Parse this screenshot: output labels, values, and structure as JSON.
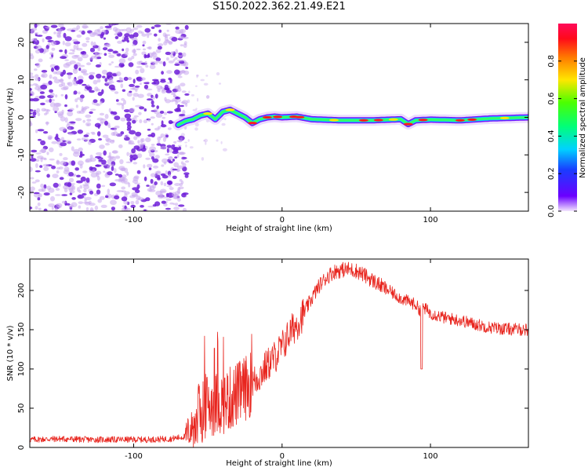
{
  "title": "S150.2022.362.21.49.E21",
  "colors": {
    "signal_line": "#e8251e",
    "scatter_light": "#c9a8ee",
    "scatter_dark": "#6e1ed8",
    "frame": "#000000"
  },
  "chart_data": [
    {
      "type": "heatmap",
      "xlabel": "Height of straight line (km)",
      "ylabel": "Frequency (Hz)",
      "xlim": [
        -170,
        166
      ],
      "ylim": [
        -25,
        25
      ],
      "x_ticks": [
        -100,
        0,
        100
      ],
      "y_ticks": [
        -20,
        -10,
        0,
        10,
        20
      ],
      "noise_region_x": [
        -170,
        -68
      ],
      "ridge": {
        "x": [
          -70,
          -65,
          -60,
          -55,
          -50,
          -45,
          -40,
          -35,
          -30,
          -25,
          -20,
          -15,
          -10,
          -5,
          0,
          10,
          20,
          40,
          60,
          80,
          85,
          90,
          100,
          120,
          140,
          166
        ],
        "y": [
          -2,
          -1,
          -0.5,
          0.5,
          1,
          -0.5,
          1.5,
          2,
          1,
          0,
          -1.5,
          -0.5,
          0,
          0.2,
          0,
          0.2,
          -0.5,
          -0.8,
          -0.8,
          -0.5,
          -1.8,
          -0.8,
          -0.6,
          -0.8,
          -0.3,
          0
        ]
      },
      "colorbar": {
        "label": "Normalized spectral amplitude",
        "ticks": [
          "0.0",
          "0.2",
          "0.4",
          "0.6",
          "0.8"
        ],
        "range": [
          0,
          1
        ]
      }
    },
    {
      "type": "line",
      "xlabel": "Height of straight line (km)",
      "ylabel": "SNR (10 * v/v)",
      "xlim": [
        -170,
        166
      ],
      "ylim": [
        0,
        240
      ],
      "x_ticks": [
        -100,
        0,
        100
      ],
      "y_ticks": [
        0,
        50,
        100,
        150,
        200
      ],
      "series": [
        {
          "x": [
            -170,
            -150,
            -130,
            -110,
            -90,
            -75,
            -65,
            -60,
            -55,
            -50,
            -45,
            -40,
            -35,
            -30,
            -25,
            -20,
            -15,
            -10,
            -5,
            0,
            5,
            10,
            15,
            20,
            25,
            30,
            35,
            40,
            45,
            50,
            55,
            60,
            70,
            80,
            90,
            93,
            95,
            100,
            110,
            120,
            130,
            140,
            150,
            166
          ],
          "values": [
            10,
            11,
            10,
            10,
            10,
            11,
            14,
            28,
            45,
            55,
            55,
            58,
            62,
            68,
            75,
            82,
            92,
            105,
            115,
            128,
            145,
            158,
            172,
            190,
            206,
            217,
            224,
            226,
            227,
            225,
            220,
            214,
            202,
            190,
            182,
            175,
            179,
            171,
            165,
            162,
            157,
            153,
            151,
            150
          ]
        }
      ]
    }
  ]
}
